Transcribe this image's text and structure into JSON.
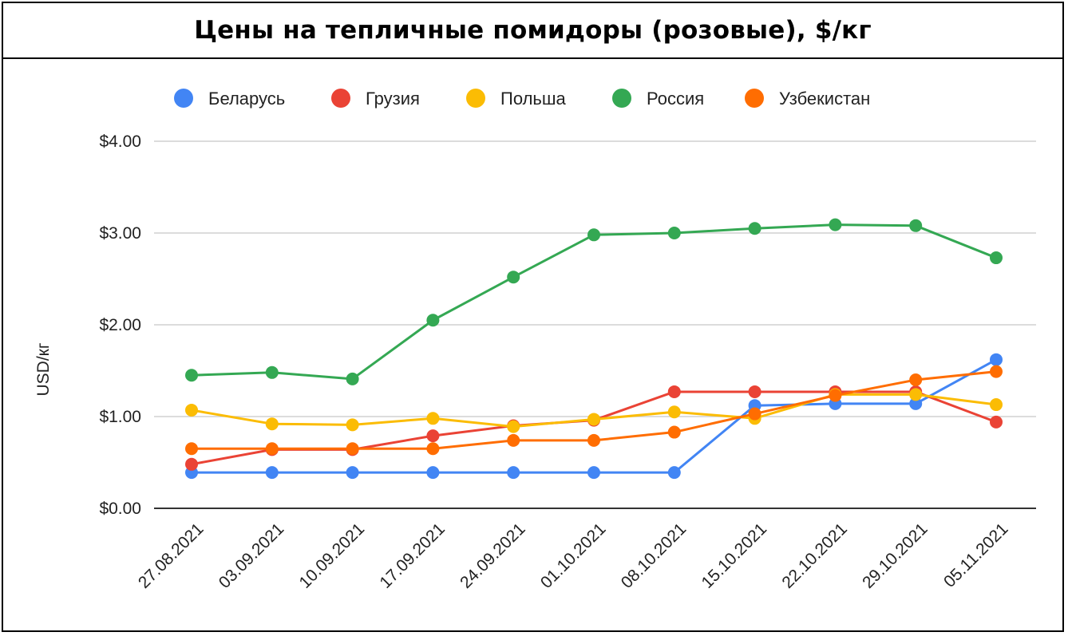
{
  "chart_data": {
    "type": "line",
    "title": "Цены на тепличные помидоры (розовые), $/кг",
    "ylabel": "USD/кг",
    "xlabel": "",
    "ylim": [
      0,
      4
    ],
    "yticks": [
      {
        "value": 0,
        "label": "$0.00"
      },
      {
        "value": 1,
        "label": "$1.00"
      },
      {
        "value": 2,
        "label": "$2.00"
      },
      {
        "value": 3,
        "label": "$3.00"
      },
      {
        "value": 4,
        "label": "$4.00"
      }
    ],
    "grid": true,
    "legend_position": "top",
    "categories": [
      "27.08.2021",
      "03.09.2021",
      "10.09.2021",
      "17.09.2021",
      "24.09.2021",
      "01.10.2021",
      "08.10.2021",
      "15.10.2021",
      "22.10.2021",
      "29.10.2021",
      "05.11.2021"
    ],
    "series": [
      {
        "name": "Беларусь",
        "color": "#4285f4",
        "values": [
          0.39,
          0.39,
          0.39,
          0.39,
          0.39,
          0.39,
          0.39,
          1.12,
          1.14,
          1.14,
          1.62
        ]
      },
      {
        "name": "Грузия",
        "color": "#ea4335",
        "values": [
          0.48,
          0.64,
          0.64,
          0.79,
          0.9,
          0.96,
          1.27,
          1.27,
          1.27,
          1.27,
          0.94
        ]
      },
      {
        "name": "Польша",
        "color": "#fbbc04",
        "values": [
          1.07,
          0.92,
          0.91,
          0.98,
          0.89,
          0.97,
          1.05,
          0.98,
          1.24,
          1.24,
          1.13
        ]
      },
      {
        "name": "Россия",
        "color": "#34a853",
        "values": [
          1.45,
          1.48,
          1.41,
          2.05,
          2.52,
          2.98,
          3.0,
          3.05,
          3.09,
          3.08,
          2.73
        ]
      },
      {
        "name": "Узбекистан",
        "color": "#ff6d01",
        "values": [
          0.65,
          0.65,
          0.65,
          0.65,
          0.74,
          0.74,
          0.83,
          1.03,
          1.23,
          1.4,
          1.49
        ]
      }
    ]
  }
}
